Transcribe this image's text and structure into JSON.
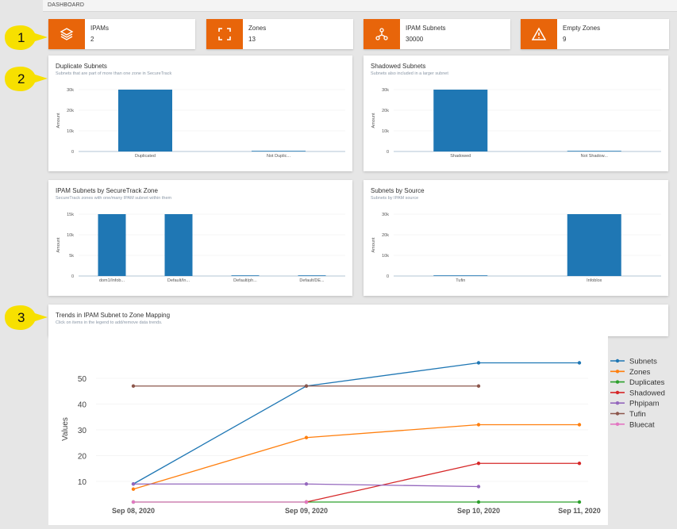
{
  "header": {
    "title": "DASHBOARD"
  },
  "colors": {
    "accent": "#e8650a",
    "bar": "#1f77b4",
    "callout": "#f7e000"
  },
  "tiles": [
    {
      "label": "IPAMs",
      "value": "2",
      "icon": "layers-icon"
    },
    {
      "label": "Zones",
      "value": "13",
      "icon": "zone-frame-icon"
    },
    {
      "label": "IPAM Subnets",
      "value": "30000",
      "icon": "network-icon"
    },
    {
      "label": "Empty Zones",
      "value": "9",
      "icon": "warning-icon"
    }
  ],
  "callouts": [
    "1",
    "2",
    "3"
  ],
  "cards": {
    "duplicate": {
      "title": "Duplicate Subnets",
      "subtitle": "Subnets that are part of more than one zone in SecureTrack"
    },
    "shadowed": {
      "title": "Shadowed Subnets",
      "subtitle": "Subnets also included in a larger subnet"
    },
    "by_zone": {
      "title": "IPAM Subnets by SecureTrack Zone",
      "subtitle": "SecureTrack zones with one/many IPAM subnet within them"
    },
    "by_source": {
      "title": "Subnets by Source",
      "subtitle": "Subnets by IPAM source"
    },
    "trends": {
      "title": "Trends in IPAM Subnet to Zone Mapping",
      "subtitle": "Click on items in the legend to add/remove data trends."
    }
  },
  "chart_data": [
    {
      "type": "bar",
      "categories": [
        "Duplicated",
        "Not Duplic..."
      ],
      "values": [
        30000,
        300
      ],
      "ylabel": "Amount",
      "ylim": [
        0,
        30000
      ],
      "yticks": [
        "0",
        "10k",
        "20k",
        "30k"
      ]
    },
    {
      "type": "bar",
      "categories": [
        "Shadowed",
        "Not Shadow..."
      ],
      "values": [
        30000,
        300
      ],
      "ylabel": "Amount",
      "ylim": [
        0,
        30000
      ],
      "yticks": [
        "0",
        "10k",
        "20k",
        "30k"
      ]
    },
    {
      "type": "bar",
      "categories": [
        "dom1/Infob...",
        "Default/In...",
        "Default/ph...",
        "Default/DE..."
      ],
      "values": [
        15000,
        15000,
        100,
        100
      ],
      "ylabel": "Amount",
      "ylim": [
        0,
        15000
      ],
      "yticks": [
        "0",
        "5k",
        "10k",
        "15k"
      ]
    },
    {
      "type": "bar",
      "categories": [
        "Tufin",
        "Infoblox"
      ],
      "values": [
        100,
        30000
      ],
      "ylabel": "Amount",
      "ylim": [
        0,
        30000
      ],
      "yticks": [
        "0",
        "10k",
        "20k",
        "30k"
      ]
    },
    {
      "type": "line",
      "x": [
        "Sep 08, 2020",
        "Sep 09, 2020",
        "Sep 10, 2020",
        "Sep 11, 2020"
      ],
      "ylabel": "Values",
      "yticks": [
        10,
        20,
        30,
        40,
        50
      ],
      "ylim": [
        3,
        56
      ],
      "legend": "right",
      "series": [
        {
          "name": "Subnets",
          "color": "#1f77b4",
          "values": [
            9,
            47,
            56,
            56
          ]
        },
        {
          "name": "Zones",
          "color": "#ff7f0e",
          "values": [
            7,
            27,
            32,
            32
          ]
        },
        {
          "name": "Duplicates",
          "color": "#2ca02c",
          "values": [
            2,
            2,
            2,
            2
          ]
        },
        {
          "name": "Shadowed",
          "color": "#d62728",
          "values": [
            null,
            2,
            17,
            17
          ]
        },
        {
          "name": "Phpipam",
          "color": "#9467bd",
          "values": [
            9,
            9,
            8,
            null
          ]
        },
        {
          "name": "Tufin",
          "color": "#8c564b",
          "values": [
            47,
            47,
            47,
            null
          ]
        },
        {
          "name": "Bluecat",
          "color": "#e377c2",
          "values": [
            2,
            2,
            null,
            null
          ]
        }
      ]
    }
  ]
}
